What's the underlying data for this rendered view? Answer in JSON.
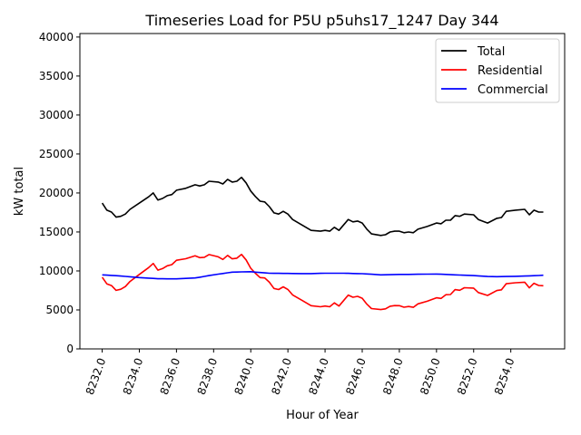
{
  "chart_data": {
    "type": "line",
    "title": "Timeseries Load for P5U p5uhs17_1247  Day 344",
    "xlabel": "Hour of Year",
    "ylabel": "kW total",
    "xlim": [
      8230.8,
      8256.9
    ],
    "ylim": [
      0,
      40450
    ],
    "grid": false,
    "legend_position": "top-right",
    "x_ticks": [
      8232,
      8234,
      8236,
      8238,
      8240,
      8242,
      8244,
      8246,
      8248,
      8250,
      8252,
      8254
    ],
    "x_tick_labels": [
      "8232.0",
      "8234.0",
      "8236.0",
      "8238.0",
      "8240.0",
      "8242.0",
      "8244.0",
      "8246.0",
      "8248.0",
      "8250.0",
      "8252.0",
      "8254.0"
    ],
    "y_ticks": [
      0,
      5000,
      10000,
      15000,
      20000,
      25000,
      30000,
      35000,
      40000
    ],
    "y_tick_labels": [
      "0",
      "5000",
      "10000",
      "15000",
      "20000",
      "25000",
      "30000",
      "35000",
      "40000"
    ],
    "x": [
      8232,
      8232.25,
      8232.5,
      8232.75,
      8233,
      8233.25,
      8233.5,
      8234,
      8234.5,
      8234.75,
      8235,
      8235.25,
      8235.5,
      8235.75,
      8236,
      8236.5,
      8237,
      8237.25,
      8237.5,
      8237.75,
      8238.25,
      8238.5,
      8238.75,
      8239,
      8239.25,
      8239.5,
      8239.75,
      8240,
      8240.25,
      8240.5,
      8240.75,
      8241,
      8241.25,
      8241.5,
      8241.75,
      8242,
      8242.25,
      8242.75,
      8243.25,
      8243.75,
      8244,
      8244.25,
      8244.5,
      8244.75,
      8245,
      8245.25,
      8245.5,
      8245.75,
      8246,
      8246.25,
      8246.5,
      8247,
      8247.25,
      8247.5,
      8247.75,
      8248,
      8248.25,
      8248.5,
      8248.75,
      8249,
      8249.5,
      8250,
      8250.25,
      8250.5,
      8250.75,
      8251,
      8251.25,
      8251.5,
      8252,
      8252.25,
      8252.75,
      8253.25,
      8253.5,
      8253.75,
      8254.25,
      8254.75,
      8255,
      8255.25,
      8255.5,
      8255.75
    ],
    "series": [
      {
        "name": "Total",
        "color": "#000000",
        "values": [
          18700,
          17800,
          17550,
          16900,
          17000,
          17300,
          17900,
          18700,
          19500,
          20000,
          19100,
          19300,
          19650,
          19800,
          20350,
          20600,
          21050,
          20900,
          21050,
          21500,
          21400,
          21150,
          21750,
          21400,
          21500,
          22000,
          21300,
          20250,
          19550,
          18950,
          18850,
          18250,
          17450,
          17300,
          17650,
          17300,
          16600,
          15900,
          15200,
          15100,
          15200,
          15100,
          15600,
          15200,
          15900,
          16600,
          16300,
          16400,
          16150,
          15350,
          14750,
          14550,
          14650,
          15000,
          15100,
          15100,
          14900,
          15000,
          14900,
          15350,
          15700,
          16150,
          16050,
          16500,
          16500,
          17100,
          17000,
          17300,
          17200,
          16600,
          16150,
          16750,
          16850,
          17650,
          17800,
          17900,
          17200,
          17800,
          17550,
          17550
        ]
      },
      {
        "name": "Residential",
        "color": "#ff0000",
        "values": [
          9200,
          8340,
          8125,
          7510,
          7650,
          8000,
          8650,
          9550,
          10425,
          10960,
          10100,
          10300,
          10660,
          10815,
          11370,
          11560,
          11950,
          11700,
          11750,
          12100,
          11810,
          11475,
          11990,
          11550,
          11640,
          12125,
          11410,
          10350,
          9700,
          9150,
          9100,
          8550,
          7755,
          7610,
          7965,
          7620,
          6925,
          6240,
          5540,
          5410,
          5500,
          5400,
          5900,
          5500,
          6200,
          6910,
          6625,
          6740,
          6500,
          5740,
          5175,
          5050,
          5140,
          5475,
          5560,
          5550,
          5345,
          5440,
          5335,
          5775,
          6110,
          6550,
          6475,
          6950,
          6975,
          7600,
          7525,
          7850,
          7800,
          7235,
          6860,
          7490,
          7575,
          8360,
          8490,
          8550,
          7830,
          8410,
          8140,
          8100
        ]
      },
      {
        "name": "Commercial",
        "color": "#0000ff",
        "values": [
          9500,
          9460,
          9425,
          9390,
          9350,
          9300,
          9250,
          9150,
          9075,
          9040,
          9000,
          9000,
          8990,
          8985,
          8980,
          9040,
          9100,
          9200,
          9300,
          9400,
          9590,
          9675,
          9760,
          9850,
          9860,
          9875,
          9890,
          9900,
          9850,
          9800,
          9750,
          9700,
          9695,
          9690,
          9685,
          9680,
          9675,
          9660,
          9660,
          9690,
          9700,
          9700,
          9700,
          9700,
          9700,
          9690,
          9675,
          9660,
          9650,
          9610,
          9575,
          9500,
          9510,
          9525,
          9540,
          9550,
          9555,
          9560,
          9565,
          9575,
          9590,
          9600,
          9575,
          9550,
          9525,
          9500,
          9475,
          9450,
          9400,
          9365,
          9290,
          9260,
          9275,
          9290,
          9310,
          9350,
          9370,
          9390,
          9410,
          9450
        ]
      }
    ]
  }
}
